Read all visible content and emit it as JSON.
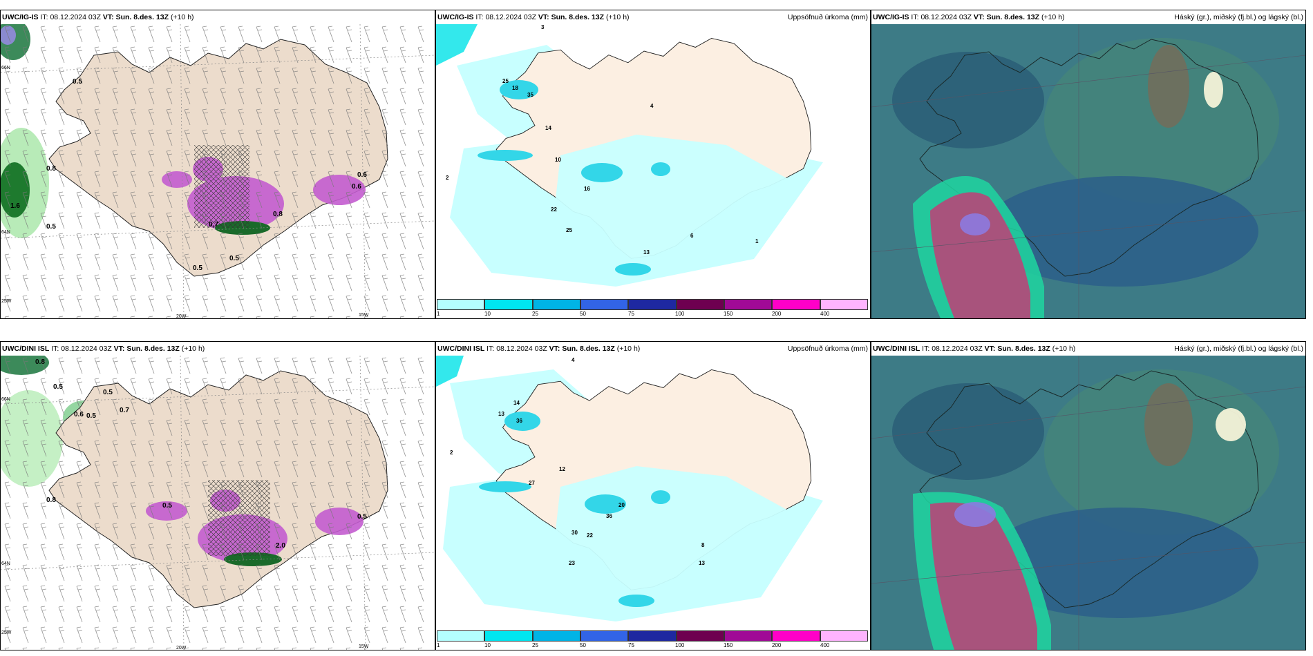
{
  "rows": [
    {
      "model": "UWC/IG-IS",
      "run_label": "IT:",
      "run_time": "08.12.2024 03Z",
      "valid_label": "VT:",
      "valid_time": "Sun. 8.des. 13Z",
      "lead": "(+10 h)"
    },
    {
      "model": "UWC/DINI ISL",
      "run_label": "IT:",
      "run_time": "08.12.2024 03Z",
      "valid_label": "VT:",
      "valid_time": "Sun. 8.des. 13Z",
      "lead": "(+10 h)"
    }
  ],
  "precip_title": "Uppsöfnuð úrkoma (mm)",
  "cloud_title": "Háský (gr.), miðský (fj.bl.) og lágský (bl.)",
  "colorbar": {
    "ticks": [
      "1",
      "10",
      "25",
      "50",
      "75",
      "100",
      "150",
      "200",
      "400"
    ],
    "colors": [
      "#b4ffff",
      "#00e6f0",
      "#00b4e6",
      "#3264e6",
      "#1e28a0",
      "#6e0050",
      "#a00a96",
      "#ff00c8",
      "#ffb4ff"
    ]
  },
  "axis_labels": {
    "lon_20": "20W",
    "lon_15": "15W",
    "lon_25": "25W",
    "lat_66": "66N",
    "lat_64": "64N"
  },
  "wind_values_top": [
    "0.5",
    "0.8",
    "1.6",
    "0.5",
    "0.7",
    "0.5",
    "0.5",
    "0.6",
    "0.6",
    "0.8"
  ],
  "wind_values_bottom": [
    "0.8",
    "0.5",
    "0.5",
    "0.6",
    "0.5",
    "0.7",
    "0.8",
    "0.5",
    "2.0",
    "0.5"
  ],
  "precip_values_top": [
    "3",
    "18",
    "35",
    "25",
    "14",
    "22",
    "16",
    "25",
    "13",
    "10",
    "6",
    "4",
    "1",
    "2"
  ],
  "precip_values_bottom": [
    "4",
    "14",
    "13",
    "36",
    "27",
    "30",
    "22",
    "23",
    "20",
    "36",
    "13",
    "12",
    "8",
    "2"
  ]
}
